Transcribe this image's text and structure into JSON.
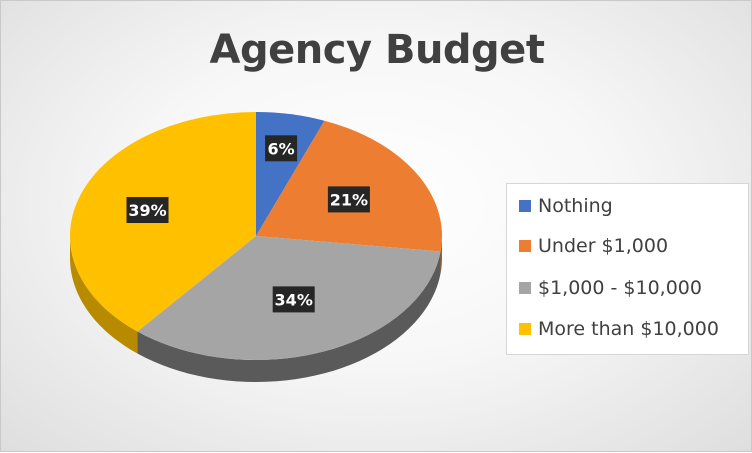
{
  "chart_data": {
    "type": "pie",
    "title": "Agency Budget",
    "categories": [
      "Nothing",
      "Under $1,000",
      "$1,000 - $10,000",
      "More than $10,000"
    ],
    "values": [
      6,
      21,
      34,
      39
    ],
    "data_labels": [
      "6%",
      "21%",
      "34%",
      "39%"
    ],
    "colors": [
      "#4472C4",
      "#ED7D31",
      "#A5A5A5",
      "#FFC000"
    ],
    "legend_position": "right"
  }
}
